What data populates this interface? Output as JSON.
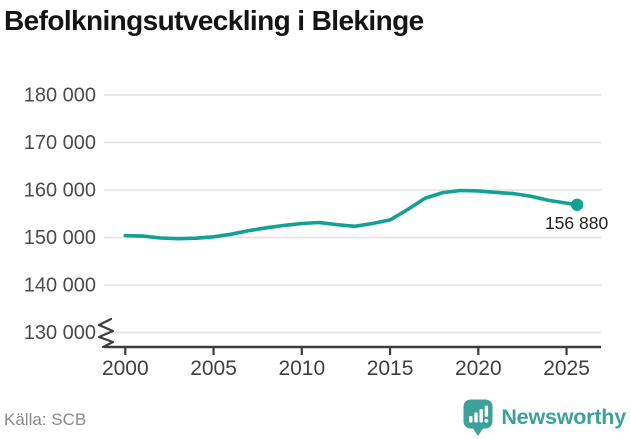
{
  "header": {
    "title": "Befolkningsutveckling i Blekinge"
  },
  "chart_data": {
    "type": "line",
    "title": "Befolkningsutveckling i Blekinge",
    "xlabel": "",
    "ylabel": "",
    "x": [
      2000,
      2001,
      2002,
      2003,
      2004,
      2005,
      2006,
      2007,
      2008,
      2009,
      2010,
      2011,
      2012,
      2013,
      2014,
      2015,
      2016,
      2017,
      2018,
      2019,
      2020,
      2021,
      2022,
      2023,
      2024,
      2025,
      2025.6
    ],
    "y": [
      150400,
      150300,
      149900,
      149750,
      149850,
      150150,
      150700,
      151450,
      152050,
      152550,
      152950,
      153150,
      152700,
      152350,
      152950,
      153700,
      155900,
      158300,
      159450,
      159900,
      159800,
      159500,
      159250,
      158650,
      157800,
      157250,
      156880
    ],
    "x_ticks": [
      2000,
      2005,
      2010,
      2015,
      2020,
      2025
    ],
    "x_tick_labels": [
      "2000",
      "2005",
      "2010",
      "2015",
      "2020",
      "2025"
    ],
    "y_ticks": [
      180000,
      170000,
      160000,
      150000,
      140000,
      130000
    ],
    "y_tick_labels": [
      "180 000",
      "170 000",
      "160 000",
      "150 000",
      "140 000",
      "130 000"
    ],
    "ylim": [
      127000,
      182000
    ],
    "xlim": [
      1998.8,
      2027.3
    ],
    "grid": "horizontal-only",
    "axis_break_bottom": true,
    "legend": "none",
    "end_point_value": 156880,
    "end_point_label": "156 880"
  },
  "footer": {
    "source_label": "Källa: SCB",
    "brand_name": "Newsworthy"
  },
  "colors": {
    "line": "#12a192",
    "brand": "#3da09a",
    "grid": "#e4e4e4",
    "axis": "#3d3d3d",
    "title_text": "#141414",
    "tick_text": "#4b4b4b",
    "source_text": "#8a8a8a",
    "end_label_text": "#1f1f1f",
    "background": "#ffffff"
  }
}
